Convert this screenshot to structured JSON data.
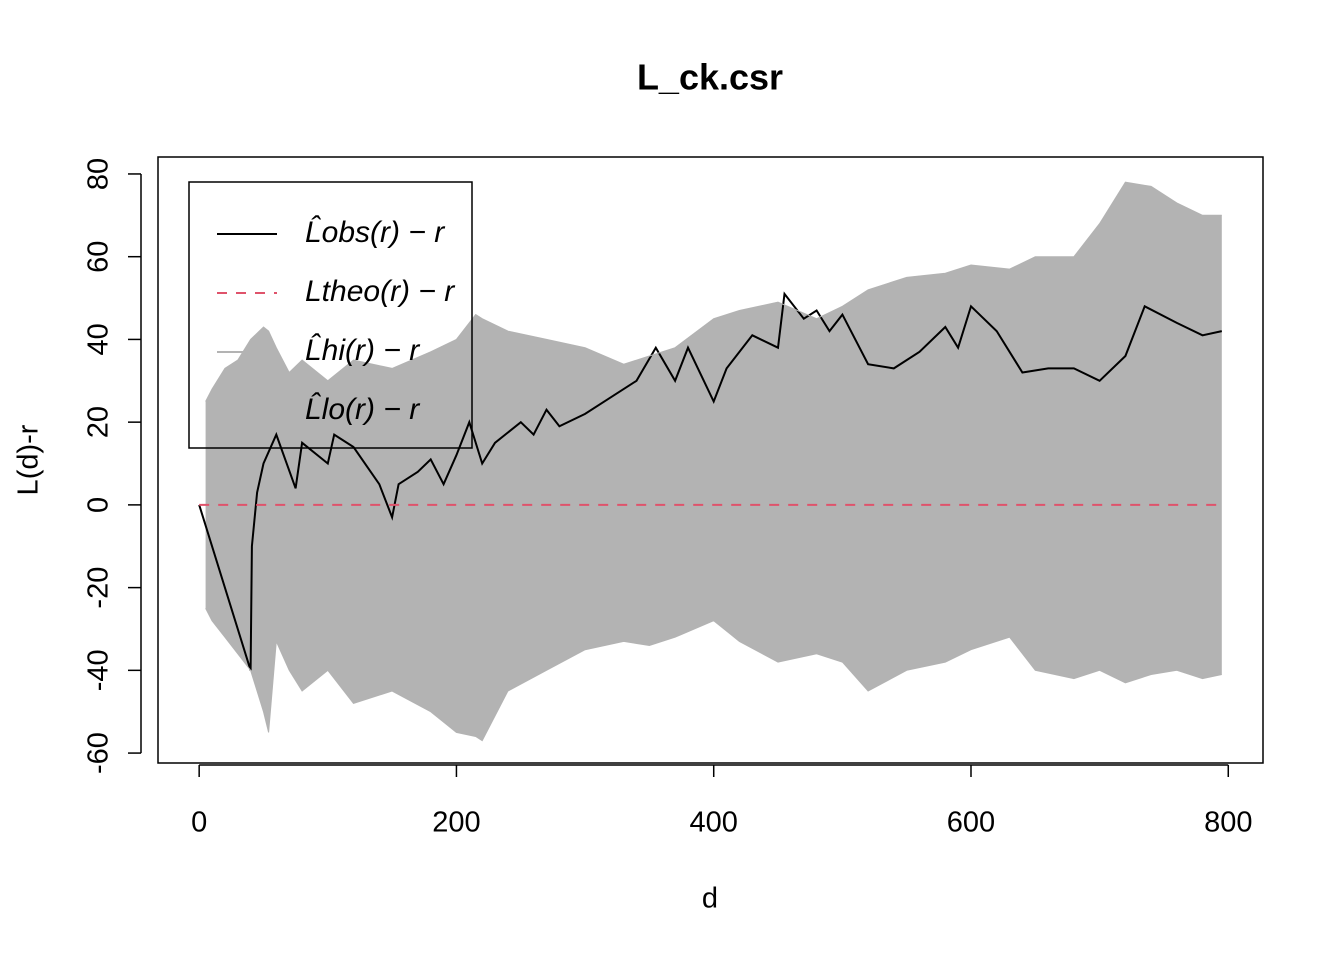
{
  "chart_data": {
    "type": "line",
    "title": "L_ck.csr",
    "x_label": "d",
    "y_label": "L(d)-r",
    "xlim": [
      -32,
      827
    ],
    "ylim": [
      -62.4,
      84.1
    ],
    "xticks": [
      0,
      200,
      400,
      600,
      800
    ],
    "yticks": [
      -60,
      -40,
      -20,
      0,
      20,
      40,
      60,
      80
    ],
    "legend": "topleft",
    "series": [
      {
        "name": "L̂obs(r) − r",
        "color": "#000000",
        "style": "solid",
        "x": [
          0,
          40,
          41,
          45,
          50,
          60,
          75,
          80,
          100,
          105,
          120,
          140,
          150,
          155,
          170,
          180,
          190,
          200,
          210,
          220,
          230,
          250,
          260,
          270,
          280,
          300,
          320,
          340,
          355,
          370,
          380,
          400,
          410,
          430,
          450,
          455,
          470,
          480,
          490,
          500,
          520,
          540,
          560,
          580,
          590,
          600,
          620,
          640,
          660,
          680,
          700,
          720,
          735,
          760,
          780,
          795
        ],
        "values": [
          0,
          -40,
          -10,
          3,
          10,
          17,
          4,
          15,
          10,
          17,
          14,
          5,
          -3,
          5,
          8,
          11,
          5,
          12,
          20,
          10,
          15,
          20,
          17,
          23,
          19,
          22,
          26,
          30,
          38,
          30,
          38,
          25,
          33,
          41,
          38,
          51,
          45,
          47,
          42,
          46,
          34,
          33,
          37,
          43,
          38,
          48,
          42,
          32,
          33,
          33,
          30,
          36,
          48,
          44,
          41,
          42
        ]
      },
      {
        "name": "Ltheo(r) − r",
        "color": "#df536b",
        "style": "dashed",
        "x": [
          0,
          795
        ],
        "values": [
          0,
          0
        ]
      },
      {
        "name": "L̂hi(r) − r",
        "color": "#b3b3b3",
        "style": "band",
        "x": [
          5,
          10,
          20,
          30,
          40,
          50,
          54,
          60,
          70,
          80,
          100,
          120,
          150,
          180,
          200,
          215,
          220,
          240,
          270,
          300,
          330,
          350,
          370,
          400,
          420,
          450,
          480,
          500,
          520,
          550,
          580,
          600,
          630,
          650,
          680,
          700,
          720,
          740,
          760,
          780,
          795
        ],
        "values": [
          25,
          28,
          33,
          35,
          40,
          43,
          42,
          38,
          32,
          35,
          30,
          35,
          33,
          37,
          40,
          46,
          45,
          42,
          40,
          38,
          34,
          36,
          38,
          45,
          47,
          49,
          45,
          48,
          52,
          55,
          56,
          58,
          57,
          60,
          60,
          68,
          78,
          77,
          73,
          70,
          70
        ]
      },
      {
        "name": "L̂lo(r) − r",
        "color": "#b3b3b3",
        "style": "band",
        "x": [
          5,
          10,
          20,
          30,
          40,
          50,
          54,
          60,
          70,
          80,
          100,
          120,
          150,
          180,
          200,
          215,
          220,
          240,
          270,
          300,
          330,
          350,
          370,
          400,
          420,
          450,
          480,
          500,
          520,
          550,
          580,
          600,
          630,
          650,
          680,
          700,
          720,
          740,
          760,
          780,
          795
        ],
        "values": [
          -25,
          -28,
          -32,
          -36,
          -40,
          -50,
          -55,
          -33,
          -40,
          -45,
          -40,
          -48,
          -45,
          -50,
          -55,
          -56,
          -57,
          -45,
          -40,
          -35,
          -33,
          -34,
          -32,
          -28,
          -33,
          -38,
          -36,
          -38,
          -45,
          -40,
          -38,
          -35,
          -32,
          -40,
          -42,
          -40,
          -43,
          -41,
          -40,
          -42,
          -41
        ]
      }
    ]
  }
}
